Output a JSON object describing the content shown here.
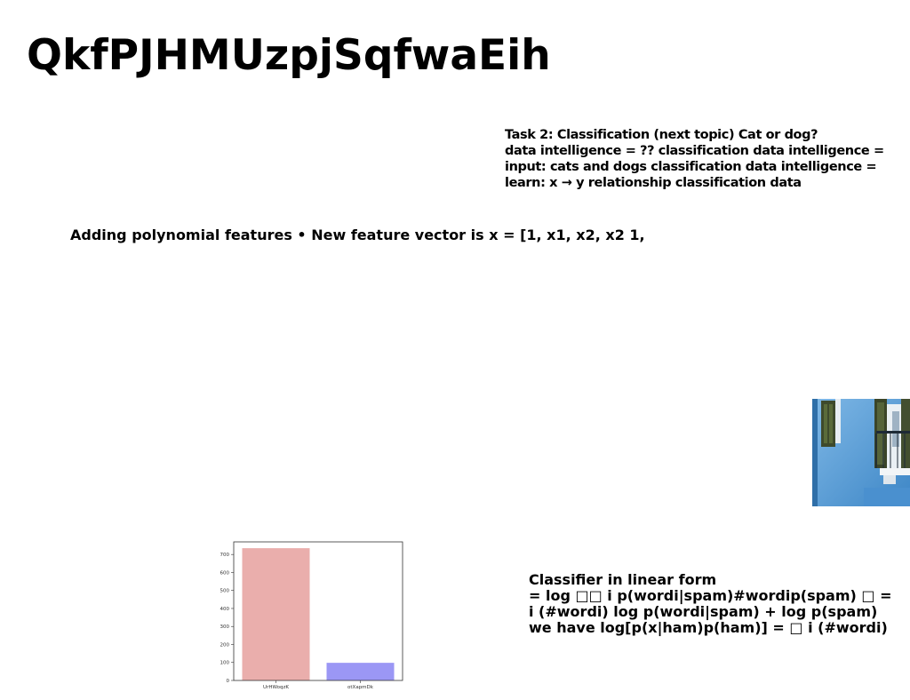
{
  "slide": {
    "title": "QkfPJHMUzpjSqfwaEih",
    "task_lines": [
      "Task 2: Classification (next topic) Cat or dog?",
      "data intelligence = ?? classification data intelligence =",
      "input: cats and dogs classification data intelligence =",
      "learn: x → y relationship classification data"
    ],
    "poly_text": "Adding polynomial features • New feature vector is x = [1, x1, x2, x2 1,",
    "classifier_lines": [
      "Classifier in linear form",
      "= log □□ i p(wordi|spam)#wordip(spam) □ =",
      "i (#wordi) log p(wordi|spam) + log p(spam)",
      "we have log[p(x|ham)p(ham)] = □ i (#wordi)"
    ]
  },
  "chart_data": {
    "type": "bar",
    "categories": [
      "UrHWoqzK",
      "otXapmDk"
    ],
    "values": [
      735,
      98
    ],
    "colors": [
      "#eaaeac",
      "#9b97f5"
    ],
    "title": "",
    "xlabel": "",
    "ylabel": "",
    "ylim": [
      0,
      770
    ],
    "yticks": [
      0,
      100,
      200,
      300,
      400,
      500,
      600,
      700
    ],
    "grid": false
  }
}
